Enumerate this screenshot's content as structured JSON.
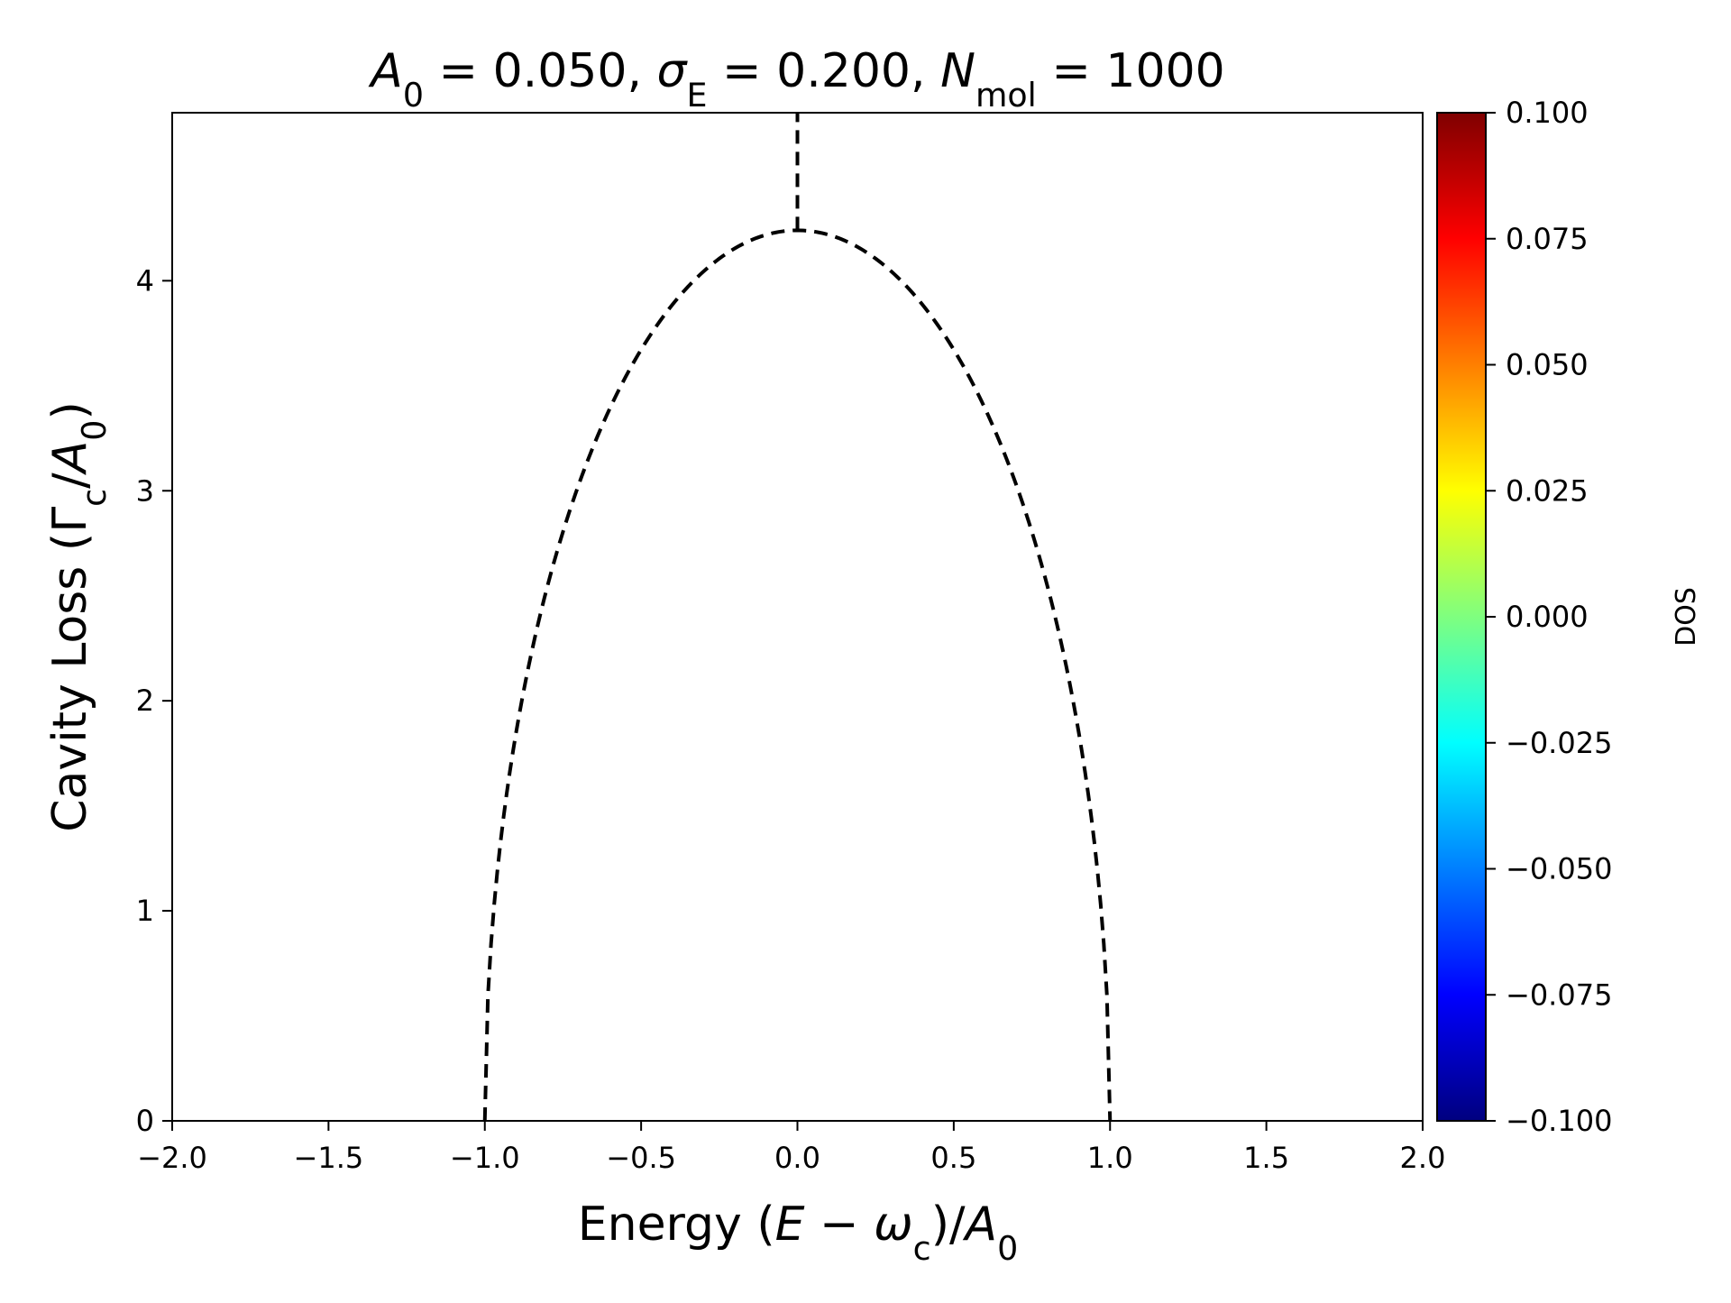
{
  "chart_data": {
    "type": "heatmap",
    "title": {
      "parts": [
        {
          "text": "A",
          "italic": true
        },
        {
          "text": "0",
          "sub": true
        },
        {
          "text": " = 0.050, "
        },
        {
          "text": "σ",
          "italic": true
        },
        {
          "text": "E",
          "sub": true
        },
        {
          "text": " = 0.200,  "
        },
        {
          "text": "N",
          "italic": true
        },
        {
          "text": "mol",
          "sub": true
        },
        {
          "text": " = 1000"
        }
      ]
    },
    "xlabel": {
      "parts": [
        {
          "text": "Energy ("
        },
        {
          "text": "E",
          "italic": true
        },
        {
          "text": " − "
        },
        {
          "text": "ω",
          "italic": true
        },
        {
          "text": "c",
          "sub": true
        },
        {
          "text": ")/"
        },
        {
          "text": "A",
          "italic": true
        },
        {
          "text": "0",
          "sub": true
        }
      ]
    },
    "ylabel": {
      "parts": [
        {
          "text": "Cavity Loss (Γ"
        },
        {
          "text": "c",
          "sub": true
        },
        {
          "text": "/"
        },
        {
          "text": "A",
          "italic": true
        },
        {
          "text": "0",
          "sub": true
        },
        {
          "text": ")"
        }
      ]
    },
    "xlim": [
      -2.0,
      2.0
    ],
    "ylim": [
      0,
      4.8
    ],
    "xticks": [
      {
        "value": -2.0,
        "label": "−2.0"
      },
      {
        "value": -1.5,
        "label": "−1.5"
      },
      {
        "value": -1.0,
        "label": "−1.0"
      },
      {
        "value": -0.5,
        "label": "−0.5"
      },
      {
        "value": 0.0,
        "label": "0.0"
      },
      {
        "value": 0.5,
        "label": "0.5"
      },
      {
        "value": 1.0,
        "label": "1.0"
      },
      {
        "value": 1.5,
        "label": "1.5"
      },
      {
        "value": 2.0,
        "label": "2.0"
      }
    ],
    "yticks": [
      {
        "value": 0,
        "label": "0"
      },
      {
        "value": 1,
        "label": "1"
      },
      {
        "value": 2,
        "label": "2"
      },
      {
        "value": 3,
        "label": "3"
      },
      {
        "value": 4,
        "label": "4"
      }
    ],
    "grid": false,
    "heatmap_values": "empty (white)",
    "boundary_curve": {
      "style": "dashed",
      "color": "#000000",
      "equation": "Gamma = 4.24 * sqrt(1 - x^2)",
      "peak": [
        0.0,
        4.24
      ],
      "vertical_line": {
        "x": 0.0,
        "y_from": 4.24,
        "y_to": 4.8
      }
    },
    "colorbar": {
      "label": "DOS",
      "colormap": "jet",
      "range": [
        -0.1,
        0.1
      ],
      "ticks": [
        {
          "value": 0.1,
          "label": "0.100"
        },
        {
          "value": 0.075,
          "label": "0.075"
        },
        {
          "value": 0.05,
          "label": "0.050"
        },
        {
          "value": 0.025,
          "label": "0.025"
        },
        {
          "value": 0.0,
          "label": "0.000"
        },
        {
          "value": -0.025,
          "label": "−0.025"
        },
        {
          "value": -0.05,
          "label": "−0.050"
        },
        {
          "value": -0.075,
          "label": "−0.075"
        },
        {
          "value": -0.1,
          "label": "−0.100"
        }
      ],
      "stops": [
        "#00007f",
        "#0000ff",
        "#007fff",
        "#00ffff",
        "#7fff7f",
        "#ffff00",
        "#ff7f00",
        "#ff0000",
        "#7f0000"
      ]
    }
  }
}
